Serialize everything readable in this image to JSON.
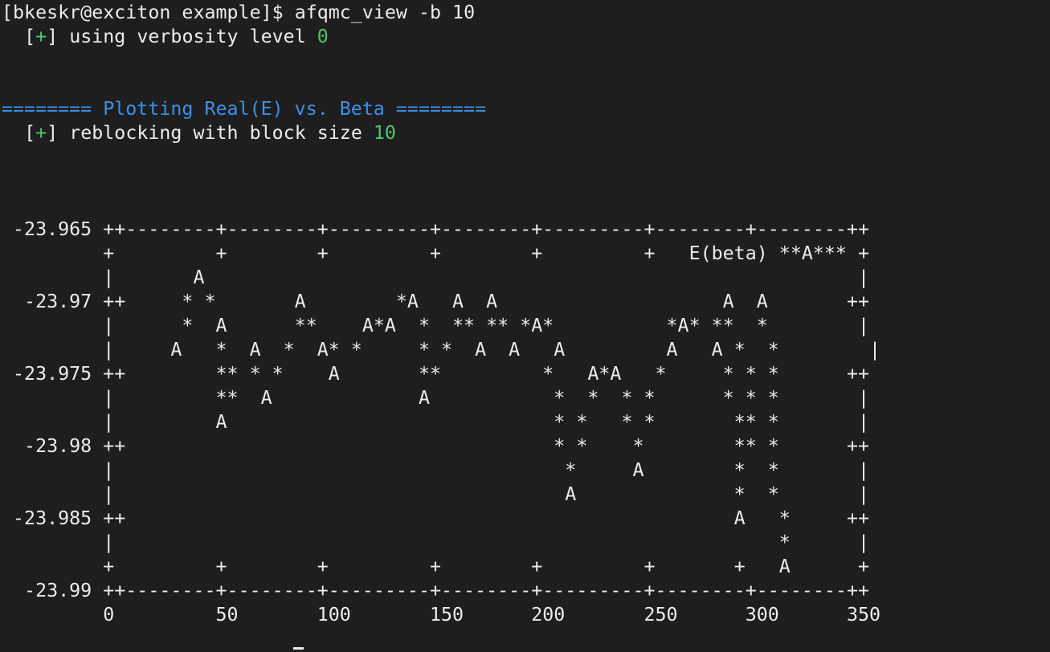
{
  "prompt": {
    "text": "[bkeskr@exciton example]$ ",
    "command": "afqmc_view -b 10"
  },
  "messages": {
    "verbosity": {
      "indent": "  ",
      "open": "[",
      "plus": "+",
      "close": "] ",
      "text": "using verbosity level ",
      "value": "0"
    },
    "header": "======== Plotting Real(E) vs. Beta ========",
    "reblock": {
      "indent": "  ",
      "open": "[",
      "plus": "+",
      "close": "] ",
      "text": "reblocking with block size ",
      "value": "10"
    }
  },
  "plot_lines": [
    " -23.965 ++--------+--------+---------+--------+---------+--------+--------++",
    "         +         +        +         +        +         +   E(beta) **A*** +",
    "         |       A                                                          |",
    "  -23.97 ++     * *       A        *A   A  A                    A  A       ++",
    "         |      *  A      **    A*A  *  ** ** *A*          *A* **  *        |",
    "         |     A   *  A  *  A* *     * *  A  A   A         A   A *  *        |",
    " -23.975 ++        ** * *    A       **         *   A*A   *     * * *      ++",
    "         |         **  A             A           *  *  * *      * * *       |",
    "         |         A                             * *   * *       ** *       |",
    "  -23.98 ++                                      * *    *        ** *      ++",
    "         |                                        *     A        *  *       |",
    "         |                                        A              *  *       |",
    " -23.985 ++                                                      A   *     ++",
    "         |                                                           *      |",
    "         +         +        +         +        +         +       +   A      +",
    "  -23.99 ++--------+--------+---------+--------+---------+--------+--------++",
    "         0         50       100       150      200       250      300      350"
  ],
  "chart_data": {
    "type": "scatter",
    "title": "",
    "xlabel": "",
    "ylabel": "",
    "legend": {
      "labels": [
        "E(beta)"
      ],
      "placement": "top-right"
    },
    "xlim": [
      0,
      350
    ],
    "ylim": [
      -23.99,
      -23.965
    ],
    "x_ticks": [
      0,
      50,
      100,
      150,
      200,
      250,
      300,
      350
    ],
    "y_ticks": [
      -23.965,
      -23.97,
      -23.975,
      -23.98,
      -23.985,
      -23.99
    ],
    "series": [
      {
        "name": "E(beta)",
        "points": [
          [
            30,
            -23.973
          ],
          [
            40,
            -23.9717
          ],
          [
            50,
            -23.972
          ],
          [
            55,
            -23.9767
          ],
          [
            65,
            -23.973
          ],
          [
            80,
            -23.975
          ],
          [
            85,
            -23.97
          ],
          [
            95,
            -23.973
          ],
          [
            105,
            -23.975
          ],
          [
            115,
            -23.972
          ],
          [
            135,
            -23.97
          ],
          [
            150,
            -23.976
          ],
          [
            165,
            -23.973
          ],
          [
            175,
            -23.97
          ],
          [
            180,
            -23.973
          ],
          [
            190,
            -23.97
          ],
          [
            200,
            -23.972
          ],
          [
            210,
            -23.973
          ],
          [
            220,
            -23.9823
          ],
          [
            225,
            -23.975
          ],
          [
            235,
            -23.975
          ],
          [
            250,
            -23.9813
          ],
          [
            265,
            -23.973
          ],
          [
            275,
            -23.972
          ],
          [
            285,
            -23.973
          ],
          [
            300,
            -23.97
          ],
          [
            305,
            -23.9847
          ],
          [
            315,
            -23.97
          ],
          [
            325,
            -23.9883
          ]
        ]
      }
    ]
  }
}
